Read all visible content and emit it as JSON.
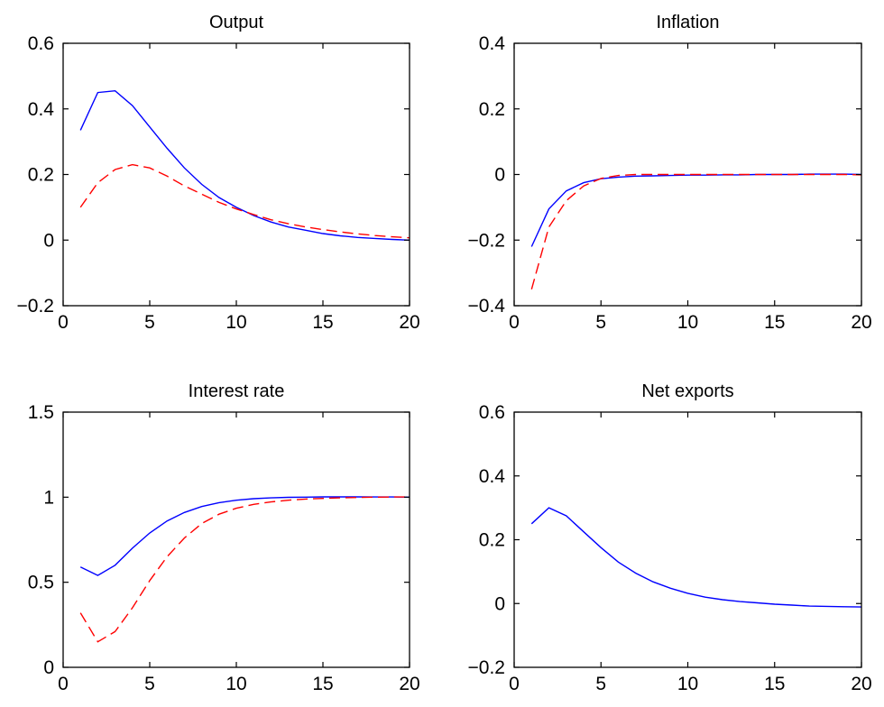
{
  "chart_data": [
    {
      "type": "line",
      "title": "Output",
      "xlim": [
        0,
        20
      ],
      "ylim": [
        -0.2,
        0.6
      ],
      "xticks": [
        0,
        5,
        10,
        15,
        20
      ],
      "yticks": [
        -0.2,
        0,
        0.2,
        0.4,
        0.6
      ],
      "xtick_labels": [
        "0",
        "5",
        "10",
        "15",
        "20"
      ],
      "ytick_labels": [
        "−0.2",
        "0",
        "0.2",
        "0.4",
        "0.6"
      ],
      "x": [
        1,
        2,
        3,
        4,
        5,
        6,
        7,
        8,
        9,
        10,
        11,
        12,
        13,
        14,
        15,
        16,
        17,
        18,
        19,
        20
      ],
      "series": [
        {
          "color": "#0000ff",
          "style": "solid",
          "values": [
            0.335,
            0.45,
            0.455,
            0.41,
            0.345,
            0.28,
            0.22,
            0.17,
            0.13,
            0.1,
            0.075,
            0.055,
            0.04,
            0.03,
            0.02,
            0.013,
            0.008,
            0.005,
            0.002,
            0.0
          ]
        },
        {
          "color": "#ff0000",
          "style": "dashed",
          "values": [
            0.1,
            0.175,
            0.215,
            0.23,
            0.22,
            0.195,
            0.165,
            0.14,
            0.115,
            0.095,
            0.078,
            0.062,
            0.05,
            0.04,
            0.032,
            0.025,
            0.019,
            0.014,
            0.01,
            0.007
          ]
        }
      ]
    },
    {
      "type": "line",
      "title": "Inflation",
      "xlim": [
        0,
        20
      ],
      "ylim": [
        -0.4,
        0.4
      ],
      "xticks": [
        0,
        5,
        10,
        15,
        20
      ],
      "yticks": [
        -0.4,
        -0.2,
        0,
        0.2,
        0.4
      ],
      "xtick_labels": [
        "0",
        "5",
        "10",
        "15",
        "20"
      ],
      "ytick_labels": [
        "−0.4",
        "−0.2",
        "0",
        "0.2",
        "0.4"
      ],
      "x": [
        1,
        2,
        3,
        4,
        5,
        6,
        7,
        8,
        9,
        10,
        11,
        12,
        13,
        14,
        15,
        16,
        17,
        18,
        19,
        20
      ],
      "series": [
        {
          "color": "#0000ff",
          "style": "solid",
          "values": [
            -0.22,
            -0.105,
            -0.05,
            -0.025,
            -0.013,
            -0.008,
            -0.005,
            -0.004,
            -0.003,
            -0.002,
            -0.002,
            -0.001,
            -0.001,
            0.0,
            0.0,
            0.0,
            0.001,
            0.001,
            0.001,
            0.0
          ]
        },
        {
          "color": "#ff0000",
          "style": "dashed",
          "values": [
            -0.35,
            -0.16,
            -0.08,
            -0.035,
            -0.012,
            -0.003,
            0.0,
            0.0,
            0.0,
            0.0,
            0.0,
            0.0,
            0.0,
            0.0,
            0.0,
            0.0,
            0.0,
            0.0,
            0.0,
            -0.001
          ]
        }
      ]
    },
    {
      "type": "line",
      "title": "Interest rate",
      "xlim": [
        0,
        20
      ],
      "ylim": [
        0,
        1.5
      ],
      "xticks": [
        0,
        5,
        10,
        15,
        20
      ],
      "yticks": [
        0,
        0.5,
        1,
        1.5
      ],
      "xtick_labels": [
        "0",
        "5",
        "10",
        "15",
        "20"
      ],
      "ytick_labels": [
        "0",
        "0.5",
        "1",
        "1.5"
      ],
      "x": [
        1,
        2,
        3,
        4,
        5,
        6,
        7,
        8,
        9,
        10,
        11,
        12,
        13,
        14,
        15,
        16,
        17,
        18,
        19,
        20
      ],
      "series": [
        {
          "color": "#0000ff",
          "style": "solid",
          "values": [
            0.59,
            0.54,
            0.6,
            0.7,
            0.79,
            0.86,
            0.91,
            0.945,
            0.968,
            0.982,
            0.991,
            0.996,
            0.999,
            1.0,
            1.002,
            1.002,
            1.002,
            1.001,
            1.001,
            1.0
          ]
        },
        {
          "color": "#ff0000",
          "style": "dashed",
          "values": [
            0.32,
            0.15,
            0.21,
            0.35,
            0.51,
            0.65,
            0.76,
            0.845,
            0.9,
            0.935,
            0.958,
            0.972,
            0.982,
            0.989,
            0.993,
            0.996,
            0.998,
            1.0,
            1.001,
            1.002
          ]
        }
      ]
    },
    {
      "type": "line",
      "title": "Net exports",
      "xlim": [
        0,
        20
      ],
      "ylim": [
        -0.2,
        0.6
      ],
      "xticks": [
        0,
        5,
        10,
        15,
        20
      ],
      "yticks": [
        -0.2,
        0,
        0.2,
        0.4,
        0.6
      ],
      "xtick_labels": [
        "0",
        "5",
        "10",
        "15",
        "20"
      ],
      "ytick_labels": [
        "−0.2",
        "0",
        "0.2",
        "0.4",
        "0.6"
      ],
      "x": [
        1,
        2,
        3,
        4,
        5,
        6,
        7,
        8,
        9,
        10,
        11,
        12,
        13,
        14,
        15,
        16,
        17,
        18,
        19,
        20
      ],
      "series": [
        {
          "color": "#0000ff",
          "style": "solid",
          "values": [
            0.25,
            0.3,
            0.275,
            0.225,
            0.175,
            0.13,
            0.095,
            0.068,
            0.048,
            0.032,
            0.02,
            0.012,
            0.006,
            0.002,
            -0.002,
            -0.005,
            -0.008,
            -0.009,
            -0.01,
            -0.011
          ]
        }
      ]
    }
  ]
}
